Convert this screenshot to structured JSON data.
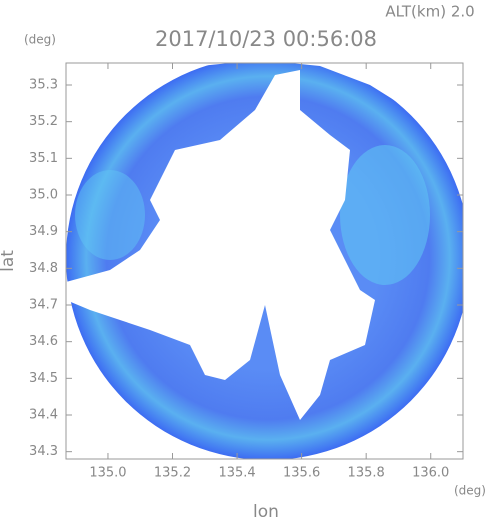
{
  "chart_data": {
    "type": "radar-map",
    "title": "2017/10/23 00:56:08",
    "subtitle": "ALT(km) 2.0",
    "xlabel": "lon",
    "ylabel": "lat",
    "xunit": "(deg)",
    "yunit": "(deg)",
    "xlim": [
      134.87,
      136.1
    ],
    "ylim": [
      34.28,
      35.36
    ],
    "xticks": [
      {
        "value": 135.0,
        "label": "135.0"
      },
      135.2,
      135.4,
      135.6,
      135.8,
      {
        "value": 136.0,
        "label": "136.0"
      }
    ],
    "yticks": [
      34.3,
      34.4,
      34.5,
      34.6,
      34.7,
      34.8,
      34.9,
      {
        "value": 35.0,
        "label": "35.0"
      },
      35.1,
      35.2,
      35.3
    ]
  }
}
